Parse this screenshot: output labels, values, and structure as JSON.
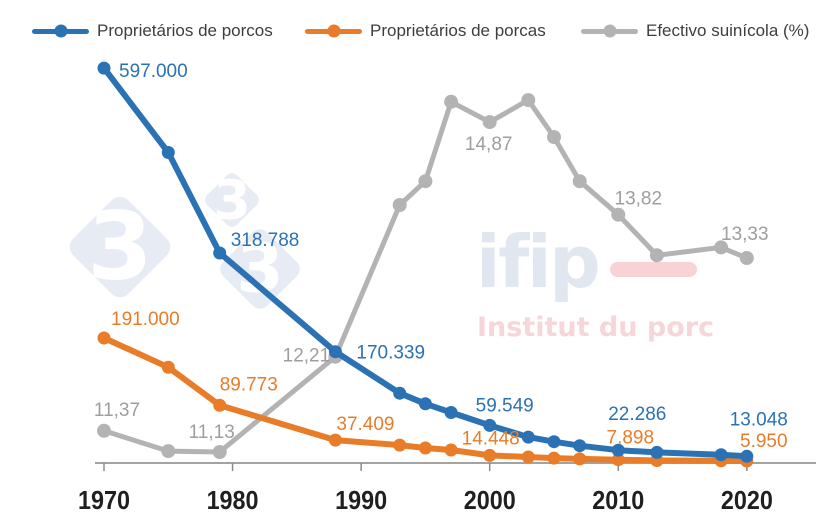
{
  "legend": {
    "items": [
      {
        "label": "Proprietários de porcos",
        "color": "#2b72b5"
      },
      {
        "label": "Proprietários de porcas",
        "color": "#e87c28"
      },
      {
        "label": "Efectivo suinícola (%)",
        "color": "#b3b3b3"
      }
    ]
  },
  "watermarks": {
    "logo333": {
      "digit": "3",
      "diamond_color": "#e6ebf4",
      "digit_color": "#ffffff"
    },
    "ifip": {
      "wordmark": "ifip",
      "subtitle": "Institut du porc",
      "wordmark_color": "#e1e7f0",
      "dash_color": "#f8d2d5",
      "subtitle_color": "#f6d6d9"
    }
  },
  "chart_data": {
    "type": "line",
    "title": "",
    "xlabel": "",
    "ylabel": "",
    "y_axis_visible": false,
    "grid": false,
    "legend_position": "top",
    "x_axis": {
      "ticks": [
        "1970",
        "1980",
        "1990",
        "2000",
        "2010",
        "2020"
      ],
      "line_color": "#a3a3a3",
      "tick_label_color": "#1f1f1f"
    },
    "x": [
      1970,
      1975,
      1979,
      1988,
      1993,
      1995,
      1997,
      2000,
      2003,
      2005,
      2007,
      2010,
      2013,
      2018,
      2020
    ],
    "values_note": "points without visible labels are estimated from the plotted positions",
    "series": [
      {
        "name": "Proprietários de porcos",
        "color": "#2b72b5",
        "axis": "count",
        "values": [
          597000,
          470000,
          318788,
          170339,
          108000,
          92000,
          79000,
          59549,
          42000,
          35000,
          29000,
          22286,
          19000,
          15500,
          13048
        ],
        "point_labels": [
          {
            "x": 1970,
            "text": "597.000"
          },
          {
            "x": 1979,
            "text": "318.788"
          },
          {
            "x": 1988,
            "text": "170.339"
          },
          {
            "x": 2000,
            "text": "59.549"
          },
          {
            "x": 2010,
            "text": "22.286"
          },
          {
            "x": 2020,
            "text": "13.048"
          }
        ]
      },
      {
        "name": "Proprietários de porcas",
        "color": "#e87c28",
        "axis": "count",
        "values": [
          191000,
          147000,
          89773,
          37409,
          30000,
          25500,
          22500,
          14448,
          12000,
          10400,
          9200,
          7898,
          6800,
          6300,
          5950
        ],
        "point_labels": [
          {
            "x": 1970,
            "text": "191.000"
          },
          {
            "x": 1979,
            "text": "89.773"
          },
          {
            "x": 1988,
            "text": "37.409"
          },
          {
            "x": 2000,
            "text": "14.448"
          },
          {
            "x": 2010,
            "text": "7.898"
          },
          {
            "x": 2020,
            "text": "5.950"
          }
        ]
      },
      {
        "name": "Efectivo suinícola (%)",
        "color": "#b3b3b3",
        "label_color": "#9e9e9e",
        "axis": "percent",
        "values": [
          11.37,
          11.14,
          11.13,
          12.21,
          13.93,
          14.2,
          15.1,
          14.87,
          15.12,
          14.7,
          14.2,
          13.82,
          13.36,
          13.45,
          13.33
        ],
        "point_labels": [
          {
            "x": 1970,
            "text": "11,37"
          },
          {
            "x": 1979,
            "text": "11,13"
          },
          {
            "x": 1988,
            "text": "12,21"
          },
          {
            "x": 2000,
            "text": "14,87"
          },
          {
            "x": 2010,
            "text": "13,82"
          },
          {
            "x": 2020,
            "text": "13,33"
          }
        ]
      }
    ]
  }
}
